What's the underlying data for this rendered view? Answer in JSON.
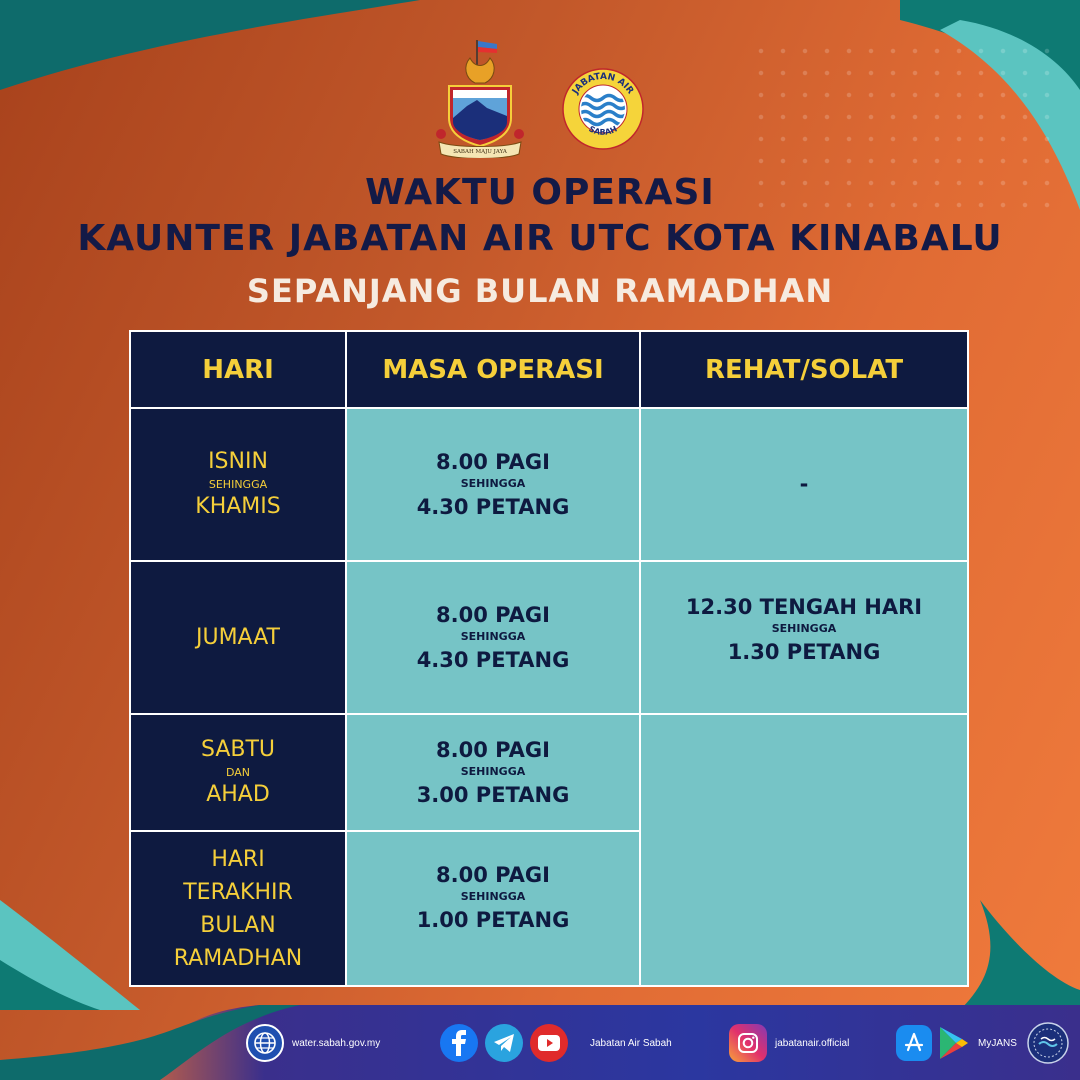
{
  "header": {
    "title_line1": "WAKTU OPERASI",
    "title_line2": "KAUNTER JABATAN AIR UTC KOTA KINABALU",
    "subtitle": "SEPANJANG BULAN RAMADHAN"
  },
  "logos": {
    "sabah_crest_motto": "SABAH MAJU JAYA",
    "jabatan_air_seal": "JABATAN AIR SABAH"
  },
  "table": {
    "headers": [
      "HARI",
      "MASA OPERASI",
      "REHAT/SOLAT"
    ],
    "rows": [
      {
        "day": [
          "ISNIN",
          "SEHINGGA",
          "KHAMIS"
        ],
        "time": [
          "8.00 PAGI",
          "SEHINGGA",
          "4.30 PETANG"
        ],
        "break": "-"
      },
      {
        "day": [
          "JUMAAT"
        ],
        "time": [
          "8.00 PAGI",
          "SEHINGGA",
          "4.30 PETANG"
        ],
        "break": [
          "12.30 TENGAH HARI",
          "SEHINGGA",
          "1.30 PETANG"
        ]
      },
      {
        "day": [
          "SABTU",
          "DAN",
          "AHAD"
        ],
        "time": [
          "8.00 PAGI",
          "SEHINGGA",
          "3.00 PETANG"
        ],
        "break": ""
      },
      {
        "day": [
          "HARI",
          "TERAKHIR",
          "BULAN",
          "RAMADHAN"
        ],
        "time": [
          "8.00 PAGI",
          "SEHINGGA",
          "1.00 PETANG"
        ],
        "break": ""
      }
    ]
  },
  "footer": {
    "website": "water.sabah.gov.my",
    "social_name": "Jabatan Air Sabah",
    "instagram": "jabatanair.official",
    "app": "MyJANS",
    "icons": [
      "globe-icon",
      "facebook-icon",
      "telegram-icon",
      "youtube-icon",
      "instagram-icon",
      "app-store-icon",
      "google-play-icon",
      "jans-emblem"
    ]
  },
  "colors": {
    "navy": "#0e1a40",
    "teal": "#76c4c6",
    "yellow": "#f5cf3a",
    "orange": "#e06b34",
    "footer_blue": "#2a3a9a"
  }
}
